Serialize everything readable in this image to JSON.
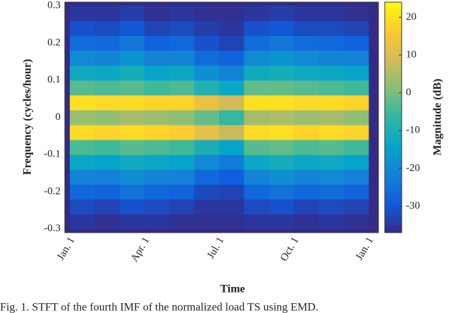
{
  "chart_data": {
    "type": "heatmap",
    "xlabel": "Time",
    "ylabel": "Frequency (cycles/hour)",
    "colorbar_label": "Magnitude (dB)",
    "caption": "Fig. 1. STFT of the fourth IMF of the normalized load TS using EMD.",
    "x": [
      0.5,
      1.5,
      2.5,
      3.5,
      4.5,
      5.5,
      6.5,
      7.5,
      8.5,
      9.5,
      10.5,
      11.5
    ],
    "y": [
      -0.28,
      -0.24,
      -0.2,
      -0.16,
      -0.12,
      -0.08,
      -0.04,
      0,
      0.04,
      0.08,
      0.12,
      0.16,
      0.2,
      0.24,
      0.28
    ],
    "values": [
      [
        -35,
        -36,
        -35,
        -35,
        -36,
        -36,
        -36,
        -35,
        -35,
        -36,
        -35,
        -36
      ],
      [
        -32,
        -33,
        -31,
        -32,
        -33,
        -35,
        -35,
        -32,
        -31,
        -33,
        -32,
        -33
      ],
      [
        -27,
        -28,
        -25,
        -27,
        -28,
        -32,
        -33,
        -27,
        -25,
        -27,
        -26,
        -28
      ],
      [
        -21,
        -22,
        -19,
        -21,
        -22,
        -27,
        -29,
        -21,
        -19,
        -21,
        -20,
        -22
      ],
      [
        -13,
        -14,
        -12,
        -13,
        -14,
        -20,
        -23,
        -13,
        -11,
        -13,
        -12,
        -14
      ],
      [
        -4,
        -5,
        -3,
        -4,
        -5,
        -10,
        -14,
        -3,
        -2,
        -4,
        -3,
        -5
      ],
      [
        19,
        18,
        19,
        18,
        17,
        12,
        8,
        19,
        20,
        18,
        19,
        18
      ],
      [
        3,
        2,
        4,
        3,
        2,
        -2,
        -6,
        4,
        5,
        3,
        4,
        2
      ],
      [
        20,
        19,
        19,
        18,
        18,
        13,
        9,
        20,
        20,
        19,
        19,
        18
      ],
      [
        -3,
        -4,
        -3,
        -5,
        -4,
        -9,
        -13,
        -2,
        -2,
        -3,
        -4,
        -5
      ],
      [
        -12,
        -13,
        -11,
        -14,
        -13,
        -19,
        -22,
        -12,
        -11,
        -12,
        -13,
        -14
      ],
      [
        -20,
        -21,
        -18,
        -22,
        -21,
        -26,
        -28,
        -20,
        -18,
        -20,
        -21,
        -22
      ],
      [
        -26,
        -27,
        -24,
        -28,
        -27,
        -31,
        -33,
        -26,
        -24,
        -26,
        -27,
        -28
      ],
      [
        -31,
        -32,
        -30,
        -33,
        -32,
        -34,
        -35,
        -31,
        -30,
        -32,
        -32,
        -33
      ],
      [
        -35,
        -35,
        -34,
        -36,
        -35,
        -36,
        -36,
        -35,
        -34,
        -35,
        -35,
        -36
      ]
    ],
    "xlim": [
      -0.2,
      12.4
    ],
    "xticks": [
      {
        "value": 0,
        "label": "Jan. 1"
      },
      {
        "value": 3,
        "label": "Apr. 1"
      },
      {
        "value": 6,
        "label": "Jul. 1"
      },
      {
        "value": 9,
        "label": "Oct. 1"
      },
      {
        "value": 12,
        "label": "Jan. 1"
      }
    ],
    "ylim": [
      -0.31,
      0.31
    ],
    "yticks": [
      -0.3,
      -0.2,
      -0.1,
      0,
      0.1,
      0.2,
      0.3
    ],
    "clim": [
      -37,
      24
    ],
    "cticks": [
      -30,
      -20,
      -10,
      0,
      10,
      20
    ],
    "colormap": [
      "#352a87",
      "#0f5cdd",
      "#1481d6",
      "#06a4ca",
      "#2eb7a4",
      "#87bf77",
      "#d1bb59",
      "#fec832",
      "#f9fb0e"
    ]
  }
}
